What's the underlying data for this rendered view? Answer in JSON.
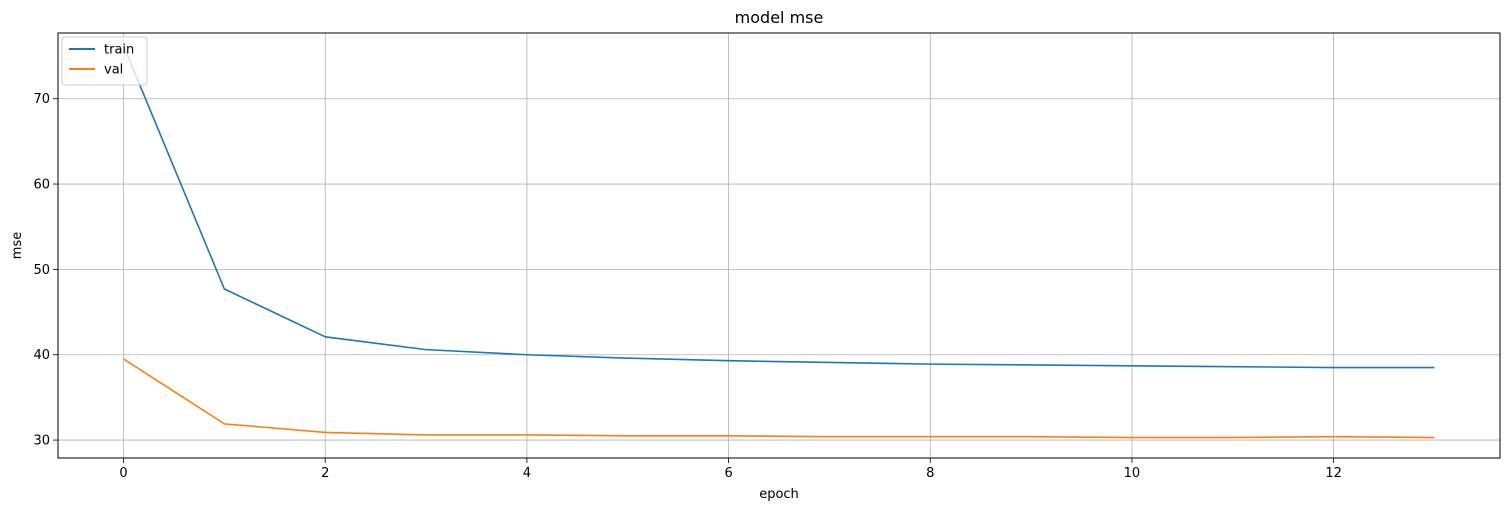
{
  "chart_data": {
    "type": "line",
    "title": "model mse",
    "xlabel": "epoch",
    "ylabel": "mse",
    "xlim": [
      -0.65,
      13.65
    ],
    "ylim": [
      27.9,
      77.7
    ],
    "xticks": [
      0,
      2,
      4,
      6,
      8,
      10,
      12
    ],
    "yticks": [
      30,
      40,
      50,
      60,
      70
    ],
    "grid": true,
    "legend_position": "upper left",
    "x": [
      0,
      1,
      2,
      3,
      4,
      5,
      6,
      7,
      8,
      9,
      10,
      11,
      12,
      13
    ],
    "series": [
      {
        "name": "train",
        "color": "#1f77b4",
        "values": [
          76.2,
          47.7,
          42.1,
          40.6,
          40.0,
          39.6,
          39.3,
          39.1,
          38.9,
          38.8,
          38.7,
          38.6,
          38.5,
          38.5
        ]
      },
      {
        "name": "val",
        "color": "#ff7f0e",
        "values": [
          39.5,
          31.9,
          30.9,
          30.6,
          30.6,
          30.5,
          30.5,
          30.4,
          30.4,
          30.4,
          30.3,
          30.3,
          30.4,
          30.3
        ]
      }
    ]
  }
}
